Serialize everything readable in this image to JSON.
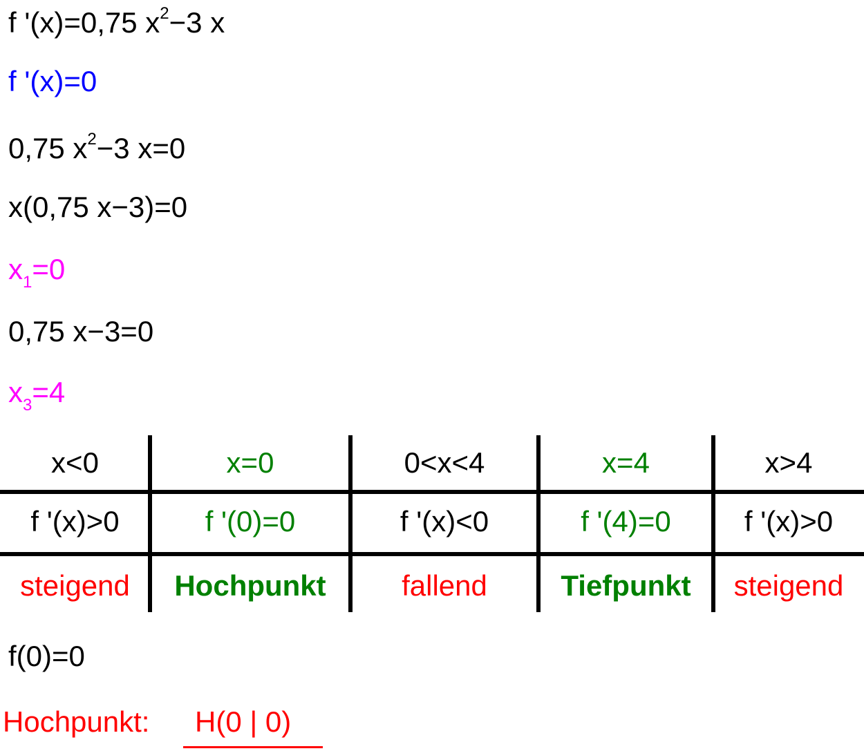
{
  "lines": [
    [
      "f '(x)=0,75 x",
      "2",
      "−3 x"
    ],
    [
      "f '(x)=0"
    ],
    [
      "0,75 x",
      "2",
      "−3 x=0"
    ],
    [
      "x(0,75 x−3)=0"
    ],
    [
      "x",
      "1",
      "=0"
    ],
    [
      "0,75 x−3=0"
    ],
    [
      "x",
      "3",
      "=4"
    ]
  ],
  "table": {
    "rows": [
      [
        "x<0",
        "x=0",
        "0<x<4",
        "x=4",
        "x>4"
      ],
      [
        "f '(x)>0",
        "f '(0)=0",
        "f '(x)<0",
        "f '(4)=0",
        "f '(x)>0"
      ],
      [
        "steigend",
        "Hochpunkt",
        "fallend",
        "Tiefpunkt",
        "steigend"
      ]
    ]
  },
  "value_line": "f(0)=0",
  "result": {
    "label": "Hochpunkt:",
    "point": "H(0 | 0)"
  }
}
